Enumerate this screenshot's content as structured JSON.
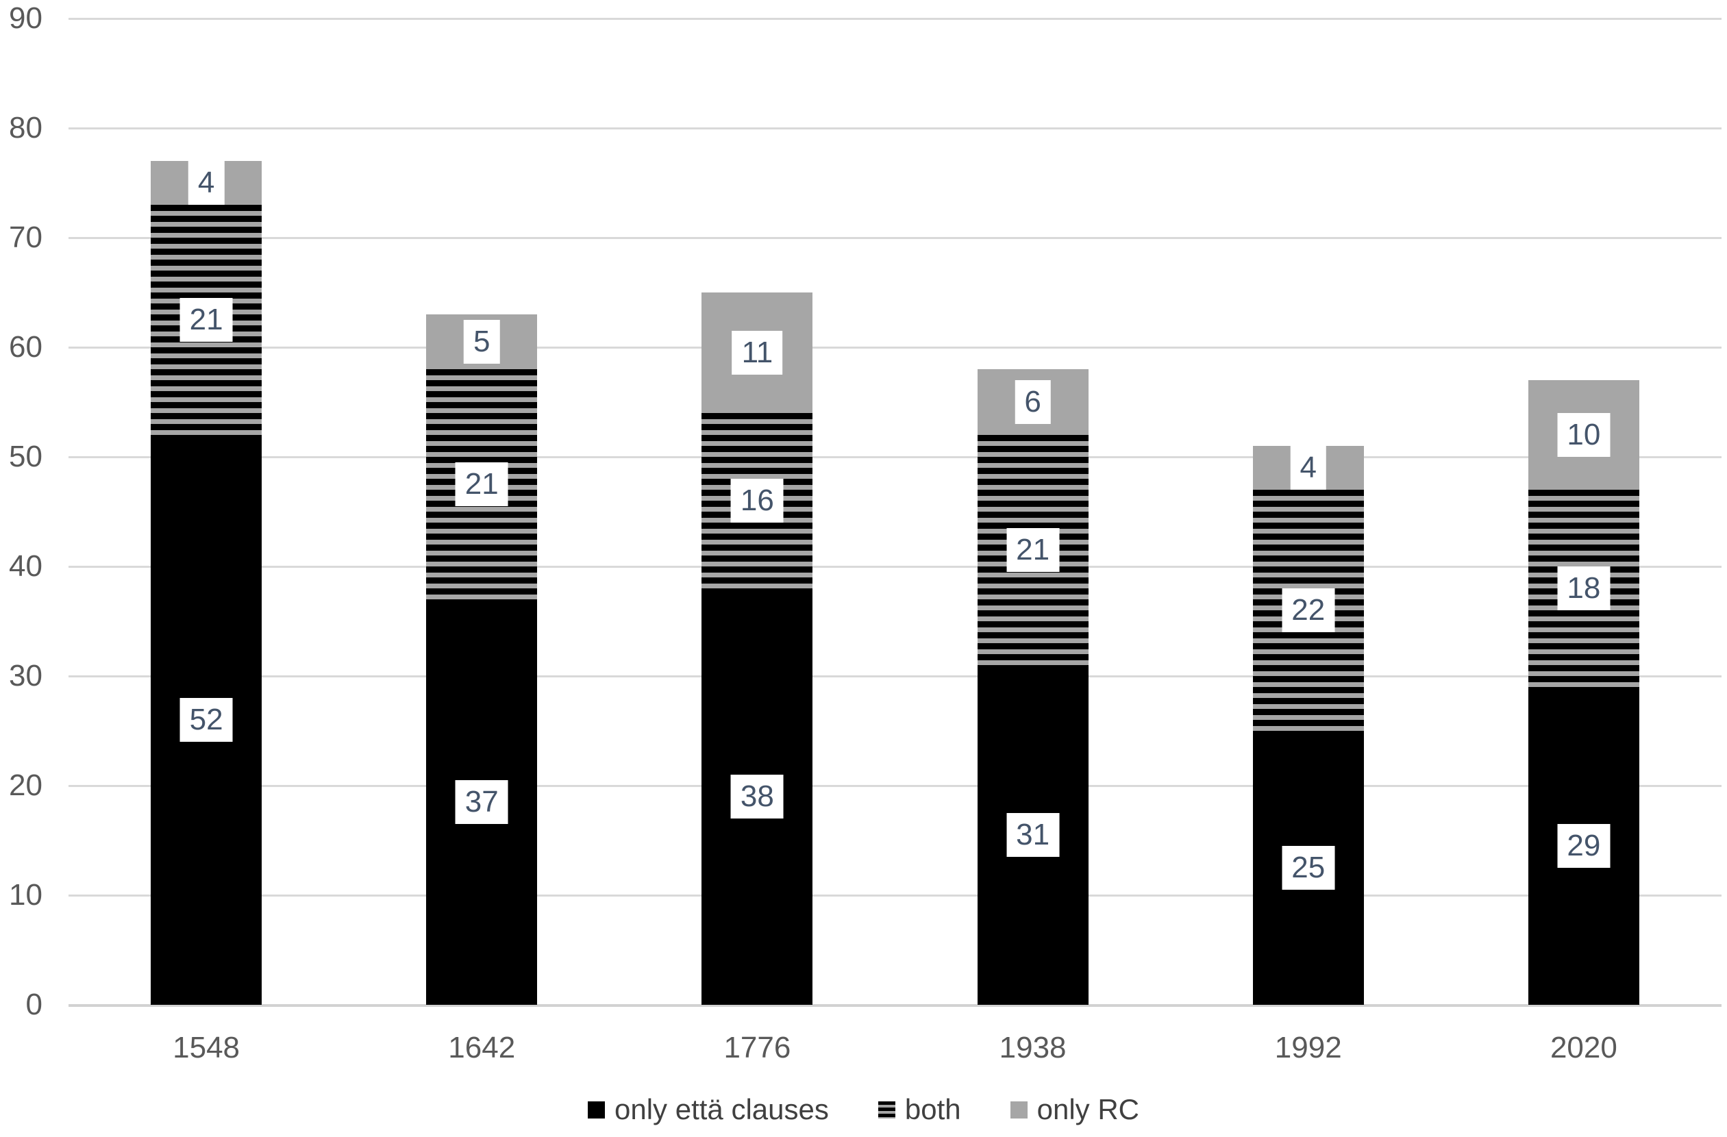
{
  "chart_data": {
    "type": "bar",
    "stacked": true,
    "categories": [
      "1548",
      "1642",
      "1776",
      "1938",
      "1992",
      "2020"
    ],
    "series": [
      {
        "name": "only että clauses",
        "slug": "only-etta-clauses",
        "pattern": "solid-black",
        "values": [
          52,
          37,
          38,
          31,
          25,
          29
        ]
      },
      {
        "name": "both",
        "slug": "both",
        "pattern": "horizontal-stripes",
        "values": [
          21,
          21,
          16,
          21,
          22,
          18
        ]
      },
      {
        "name": "only RC",
        "slug": "only-rc",
        "pattern": "solid-gray",
        "values": [
          4,
          5,
          11,
          6,
          4,
          10
        ]
      }
    ],
    "title": "",
    "xlabel": "",
    "ylabel": "",
    "ylim": [
      0,
      90
    ],
    "yticks": [
      0,
      10,
      20,
      30,
      40,
      50,
      60,
      70,
      80,
      90
    ],
    "grid": true,
    "legend_position": "bottom",
    "data_labels": "segment values in white boxes centered on each segment",
    "colors": {
      "segment_black": "#000000",
      "segment_gray": "#A6A6A6",
      "gridline": "#D9D9D9",
      "axis_line": "#D2D2D2",
      "axis_text": "#595959",
      "data_label_text": "#44546A",
      "data_label_bg": "#FFFFFF",
      "legend_text": "#404040",
      "background": "#FFFFFF"
    }
  }
}
